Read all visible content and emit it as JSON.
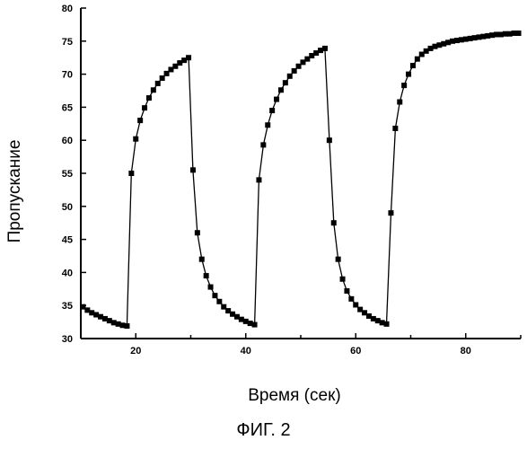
{
  "figure": {
    "caption": "ФИГ. 2"
  },
  "chart_data": {
    "type": "line",
    "xlabel": "Время (сек)",
    "ylabel": "Пропускание",
    "xlim": [
      10,
      90
    ],
    "ylim": [
      30,
      80
    ],
    "x_ticks": [
      20,
      40,
      60,
      80
    ],
    "x_tick_labels": [
      "20",
      "40",
      "60",
      "80"
    ],
    "y_ticks": [
      30,
      35,
      40,
      45,
      50,
      55,
      60,
      65,
      70,
      75,
      80
    ],
    "y_tick_labels": [
      "30",
      "35",
      "40",
      "45",
      "50",
      "55",
      "60",
      "65",
      "70",
      "75",
      "80"
    ],
    "grid": false,
    "series": [
      {
        "marker": "square",
        "color": "#000000",
        "x": [
          10.4,
          11.2,
          12.0,
          12.8,
          13.6,
          14.4,
          15.2,
          16.0,
          16.8,
          17.6,
          18.4,
          19.2,
          20.0,
          20.8,
          21.6,
          22.4,
          23.2,
          24.0,
          24.8,
          25.6,
          26.4,
          27.2,
          28.0,
          28.8,
          29.6,
          30.4,
          31.2,
          32.0,
          32.8,
          33.6,
          34.4,
          35.2,
          36.0,
          36.8,
          37.6,
          38.4,
          39.2,
          40.0,
          40.8,
          41.6,
          42.4,
          43.2,
          44.0,
          44.8,
          45.6,
          46.4,
          47.2,
          48.0,
          48.8,
          49.6,
          50.4,
          51.2,
          52.0,
          52.8,
          53.6,
          54.4,
          55.2,
          56.0,
          56.8,
          57.6,
          58.4,
          59.2,
          60.0,
          60.8,
          61.6,
          62.4,
          63.2,
          64.0,
          64.8,
          65.6,
          66.4,
          67.2,
          68.0,
          68.8,
          69.6,
          70.4,
          71.2,
          72.0,
          72.8,
          73.6,
          74.4,
          75.2,
          76.0,
          76.8,
          77.6,
          78.4,
          79.2,
          80.0,
          80.8,
          81.6,
          82.4,
          83.2,
          84.0,
          84.8,
          85.6,
          86.4,
          87.2,
          88.0,
          88.8,
          89.6
        ],
        "y": [
          34.8,
          34.3,
          33.9,
          33.6,
          33.3,
          33.0,
          32.7,
          32.4,
          32.2,
          32.0,
          31.9,
          55.0,
          60.2,
          63.0,
          64.9,
          66.4,
          67.6,
          68.6,
          69.4,
          70.1,
          70.7,
          71.2,
          71.7,
          72.1,
          72.5,
          55.5,
          46.0,
          42.0,
          39.5,
          37.8,
          36.5,
          35.6,
          34.8,
          34.2,
          33.7,
          33.3,
          32.9,
          32.6,
          32.3,
          32.1,
          54.0,
          59.3,
          62.3,
          64.5,
          66.2,
          67.6,
          68.7,
          69.7,
          70.5,
          71.2,
          71.8,
          72.3,
          72.8,
          73.2,
          73.6,
          73.9,
          60.0,
          47.5,
          42.0,
          39.0,
          37.2,
          36.0,
          35.1,
          34.4,
          33.9,
          33.4,
          33.0,
          32.7,
          32.4,
          32.2,
          49.0,
          61.8,
          65.8,
          68.3,
          70.0,
          71.3,
          72.3,
          73.0,
          73.5,
          73.9,
          74.2,
          74.4,
          74.6,
          74.8,
          75.0,
          75.1,
          75.2,
          75.3,
          75.4,
          75.5,
          75.6,
          75.7,
          75.8,
          75.9,
          76.0,
          76.0,
          76.1,
          76.1,
          76.2,
          76.2
        ]
      }
    ]
  }
}
